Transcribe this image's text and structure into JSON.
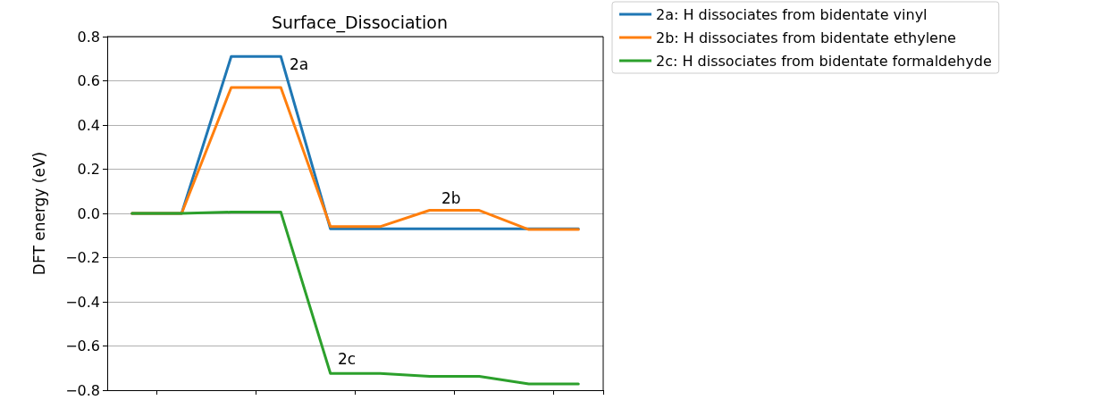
{
  "chart_data": {
    "type": "line",
    "title": "Surface_Dissociation",
    "ylabel": "DFT energy (eV)",
    "categories": [
      null,
      null,
      null,
      null,
      null,
      null,
      null,
      null,
      null,
      null
    ],
    "ylim": [
      -0.8,
      0.8
    ],
    "yticks": [
      {
        "value": -0.8,
        "label": "−0.8"
      },
      {
        "value": -0.6,
        "label": "−0.6"
      },
      {
        "value": -0.4,
        "label": "−0.4"
      },
      {
        "value": -0.2,
        "label": "−0.2"
      },
      {
        "value": 0,
        "label": "0.0"
      },
      {
        "value": 0.2,
        "label": "0.2"
      },
      {
        "value": 0.4,
        "label": "0.4"
      },
      {
        "value": 0.6,
        "label": "0.6"
      },
      {
        "value": 0.8,
        "label": "0.8"
      }
    ],
    "tick_labels": "y",
    "grid": "y",
    "legend": "right",
    "marker": "none",
    "line_style": "solid",
    "series": [
      {
        "name": "2a: H dissociates from bidentate vinyl",
        "color": "#1f77b4",
        "values": [
          0,
          0,
          0.71,
          0.71,
          -0.07,
          -0.07,
          -0.07,
          -0.07,
          -0.07,
          -0.07
        ]
      },
      {
        "name": "2b: H dissociates from bidentate ethylene",
        "color": "#ff7f0e",
        "values": [
          0,
          0,
          0.57,
          0.57,
          -0.06,
          -0.06,
          0.014,
          0.014,
          -0.073,
          -0.073
        ]
      },
      {
        "name": "2c: H dissociates from bidentate formaldehyde",
        "color": "#2ca02c",
        "values": [
          0,
          0,
          0.006,
          0.006,
          -0.724,
          -0.724,
          -0.737,
          -0.737,
          -0.772,
          -0.772
        ]
      }
    ],
    "annotations": [
      "2a",
      "2b",
      "2c"
    ]
  }
}
